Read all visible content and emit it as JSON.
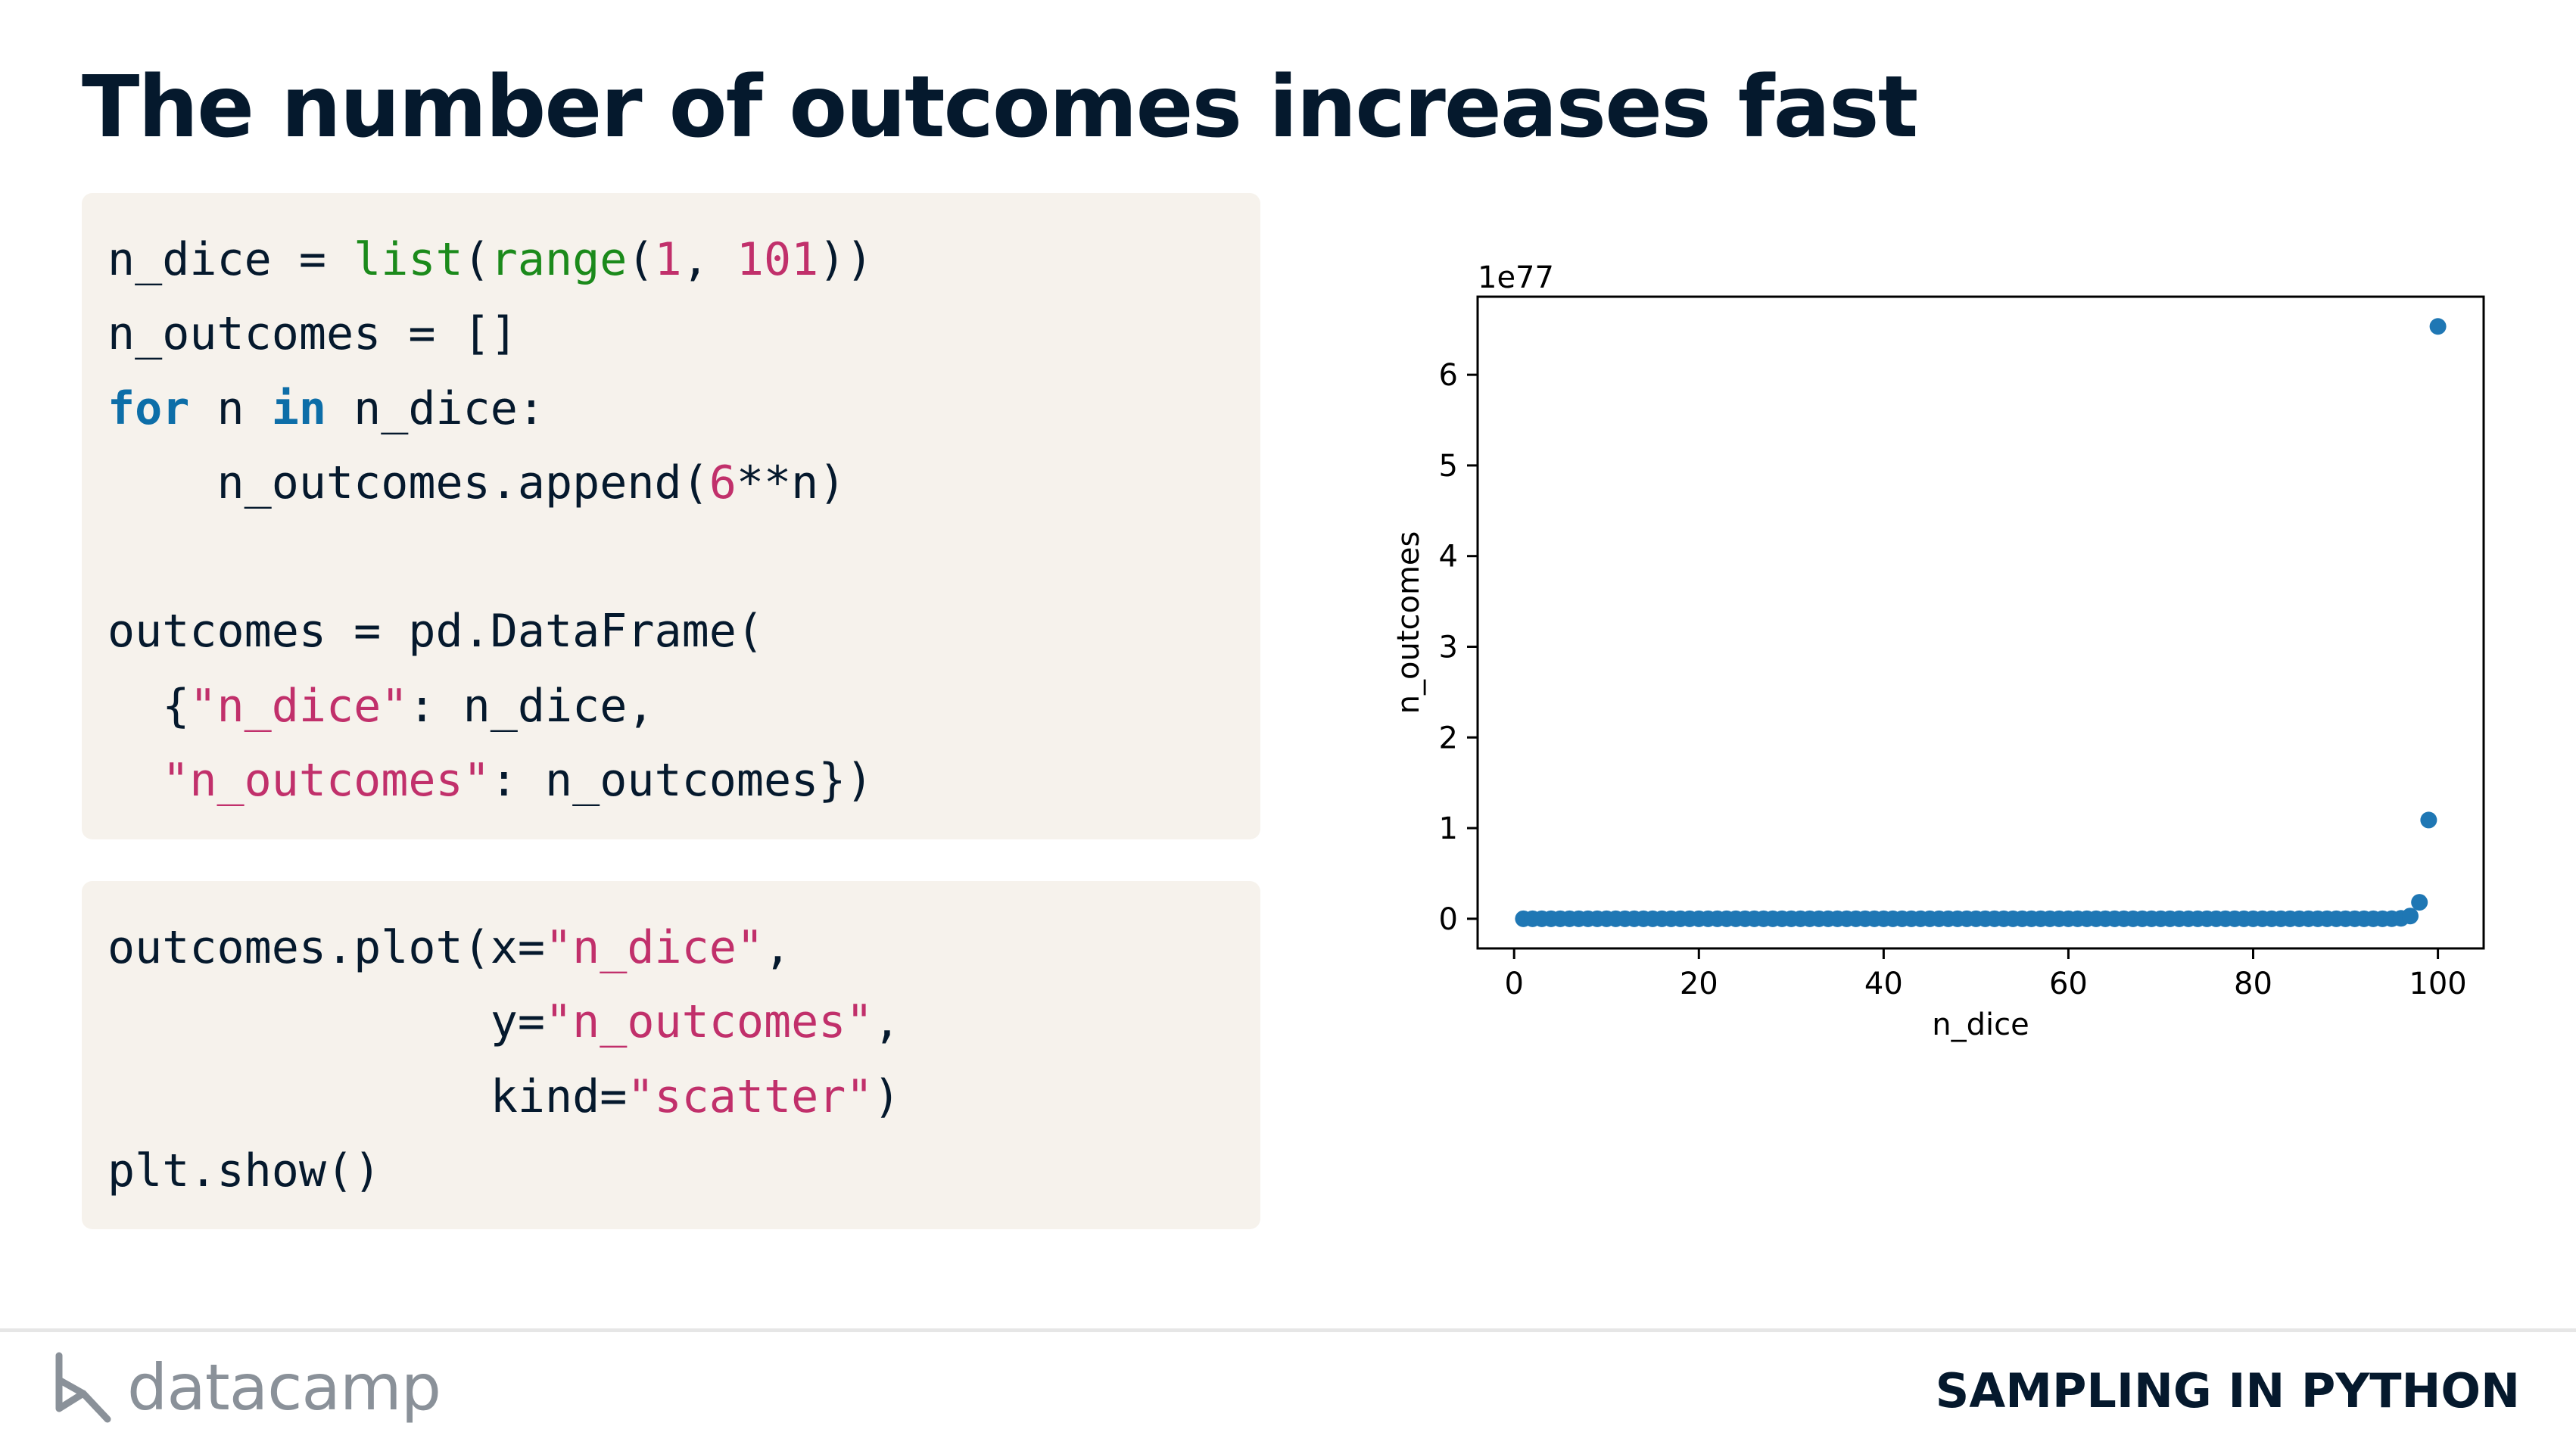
{
  "slide": {
    "title": "The number of outcomes increases fast",
    "course": "SAMPLING IN PYTHON",
    "brand": "datacamp"
  },
  "code_blocks": [
    {
      "lines": [
        [
          {
            "t": "n_dice = ",
            "c": "plain"
          },
          {
            "t": "list",
            "c": "builtin"
          },
          {
            "t": "(",
            "c": "plain"
          },
          {
            "t": "range",
            "c": "builtin"
          },
          {
            "t": "(",
            "c": "plain"
          },
          {
            "t": "1",
            "c": "num"
          },
          {
            "t": ", ",
            "c": "plain"
          },
          {
            "t": "101",
            "c": "num"
          },
          {
            "t": "))",
            "c": "plain"
          }
        ],
        [
          {
            "t": "n_outcomes = []",
            "c": "plain"
          }
        ],
        [
          {
            "t": "for",
            "c": "kw"
          },
          {
            "t": " n ",
            "c": "plain"
          },
          {
            "t": "in",
            "c": "kw"
          },
          {
            "t": " n_dice:",
            "c": "plain"
          }
        ],
        [
          {
            "t": "    n_outcomes.append(",
            "c": "plain"
          },
          {
            "t": "6",
            "c": "num"
          },
          {
            "t": "**n)",
            "c": "plain"
          }
        ],
        [
          {
            "t": "",
            "c": "plain"
          }
        ],
        [
          {
            "t": "outcomes = pd.DataFrame(",
            "c": "plain"
          }
        ],
        [
          {
            "t": "  {",
            "c": "plain"
          },
          {
            "t": "\"n_dice\"",
            "c": "str"
          },
          {
            "t": ": n_dice,",
            "c": "plain"
          }
        ],
        [
          {
            "t": "  ",
            "c": "plain"
          },
          {
            "t": "\"n_outcomes\"",
            "c": "str"
          },
          {
            "t": ": n_outcomes})",
            "c": "plain"
          }
        ]
      ]
    },
    {
      "lines": [
        [
          {
            "t": "outcomes.plot(x=",
            "c": "plain"
          },
          {
            "t": "\"n_dice\"",
            "c": "str"
          },
          {
            "t": ",",
            "c": "plain"
          }
        ],
        [
          {
            "t": "              y=",
            "c": "plain"
          },
          {
            "t": "\"n_outcomes\"",
            "c": "str"
          },
          {
            "t": ",",
            "c": "plain"
          }
        ],
        [
          {
            "t": "              kind=",
            "c": "plain"
          },
          {
            "t": "\"scatter\"",
            "c": "str"
          },
          {
            "t": ")",
            "c": "plain"
          }
        ],
        [
          {
            "t": "plt.show()",
            "c": "plain"
          }
        ]
      ]
    }
  ],
  "chart_data": {
    "type": "scatter",
    "xlabel": "n_dice",
    "ylabel": "n_outcomes",
    "offset_label": "1e77",
    "x_ticks": [
      0,
      20,
      40,
      60,
      80,
      100
    ],
    "y_ticks": [
      0,
      1,
      2,
      3,
      4,
      5,
      6
    ],
    "x_range": [
      1,
      100
    ],
    "xlim": [
      -3.95,
      104.95
    ],
    "ylim": [
      -0.327,
      6.861
    ],
    "y_scale_note": "values are 6**n / 1e77",
    "marker_color": "#1f77b4",
    "series": [
      {
        "x_from": 1,
        "x_to": 100,
        "formula": "6^x"
      }
    ]
  }
}
